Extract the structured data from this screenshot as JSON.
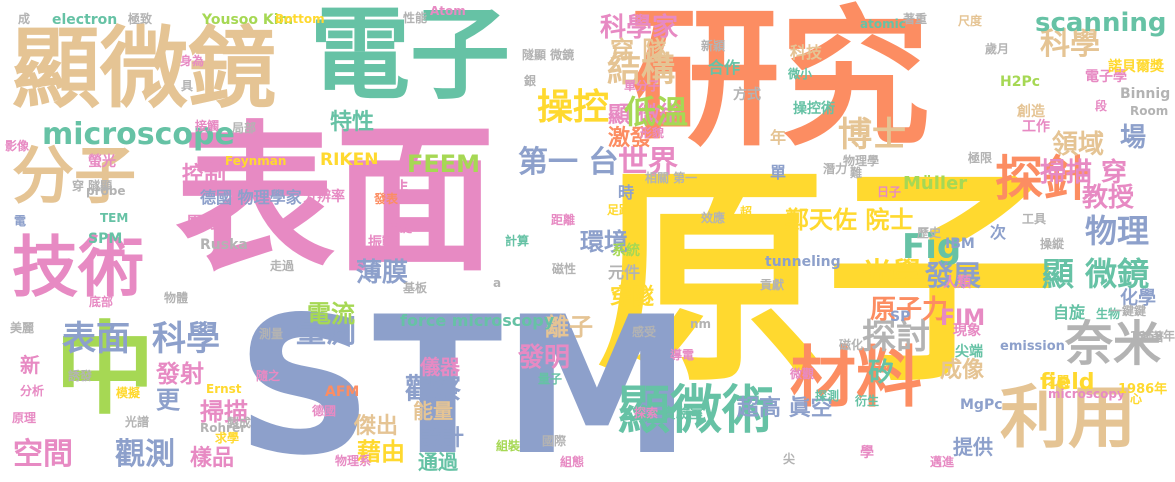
{
  "palette": {
    "green": "#66c2a5",
    "orange": "#fc8d62",
    "blue": "#8da0cb",
    "pink": "#e78ac3",
    "lime": "#a6d854",
    "yellow": "#ffd92f",
    "tan": "#e5c494",
    "gray": "#b3b3b3"
  },
  "words": [
    {
      "text": "原子",
      "color": "yellow"
    },
    {
      "text": "研究",
      "color": "orange"
    },
    {
      "text": "表面",
      "color": "pink"
    },
    {
      "text": "STM",
      "color": "blue"
    },
    {
      "text": "電子",
      "color": "green"
    },
    {
      "text": "顯微鏡",
      "color": "tan"
    },
    {
      "text": "中",
      "color": "lime"
    },
    {
      "text": "技術",
      "color": "pink"
    },
    {
      "text": "分子",
      "color": "tan"
    },
    {
      "text": "材料",
      "color": "orange"
    },
    {
      "text": "利用",
      "color": "tan"
    },
    {
      "text": "顯微術",
      "color": "green"
    },
    {
      "text": "奈米",
      "color": "gray"
    },
    {
      "text": "探針",
      "color": "orange"
    },
    {
      "text": "microscope",
      "color": "green"
    },
    {
      "text": "表面",
      "color": "blue"
    },
    {
      "text": "科學",
      "color": "blue"
    },
    {
      "text": "操控",
      "color": "yellow"
    },
    {
      "text": "結構",
      "color": "tan"
    },
    {
      "text": "科學家",
      "color": "pink"
    },
    {
      "text": "科學",
      "color": "tan"
    },
    {
      "text": "Fig",
      "color": "green"
    },
    {
      "text": "博士",
      "color": "tan"
    },
    {
      "text": "物理",
      "color": "blue"
    },
    {
      "text": "探討",
      "color": "gray"
    },
    {
      "text": "光學",
      "color": "yellow"
    },
    {
      "text": "發展",
      "color": "blue"
    },
    {
      "text": "顯 微鏡",
      "color": "green"
    },
    {
      "text": "掃描 穿",
      "color": "pink"
    },
    {
      "text": "領域",
      "color": "tan"
    },
    {
      "text": "教授",
      "color": "pink"
    },
    {
      "text": "場",
      "color": "blue"
    },
    {
      "text": "第一 台",
      "color": "blue"
    },
    {
      "text": "世界",
      "color": "pink"
    },
    {
      "text": "scanning",
      "color": "green"
    },
    {
      "text": "穿 隧",
      "color": "tan"
    },
    {
      "text": "顯 微術",
      "color": "pink"
    },
    {
      "text": "激發",
      "color": "orange"
    },
    {
      "text": "低溫",
      "color": "lime"
    },
    {
      "text": "量測",
      "color": "blue"
    },
    {
      "text": "發明",
      "color": "pink"
    },
    {
      "text": "觀察",
      "color": "blue"
    },
    {
      "text": "空間",
      "color": "pink"
    },
    {
      "text": "觀測",
      "color": "blue"
    },
    {
      "text": "掃描",
      "color": "pink"
    },
    {
      "text": "發射",
      "color": "pink"
    },
    {
      "text": "更",
      "color": "blue"
    },
    {
      "text": "離子",
      "color": "tan"
    },
    {
      "text": "環境",
      "color": "blue"
    },
    {
      "text": "薄膜",
      "color": "blue"
    },
    {
      "text": "穿隧",
      "color": "yellow"
    },
    {
      "text": "FEEM",
      "color": "lime"
    },
    {
      "text": "原子力",
      "color": "orange"
    },
    {
      "text": "FIM",
      "color": "pink"
    },
    {
      "text": "鄭天佐 院士",
      "color": "yellow"
    },
    {
      "text": "矽",
      "color": "green"
    },
    {
      "text": "成像",
      "color": "tan"
    },
    {
      "text": "field",
      "color": "yellow"
    },
    {
      "text": "超高 眞空",
      "color": "blue"
    },
    {
      "text": "控制",
      "color": "pink"
    },
    {
      "text": "特性",
      "color": "green"
    },
    {
      "text": "電流",
      "color": "lime"
    },
    {
      "text": "儀器",
      "color": "pink"
    },
    {
      "text": "設計",
      "color": "blue"
    },
    {
      "text": "傑出",
      "color": "tan"
    },
    {
      "text": "能量",
      "color": "tan"
    },
    {
      "text": "通過",
      "color": "green"
    },
    {
      "text": "藉由",
      "color": "yellow"
    },
    {
      "text": "樣品",
      "color": "pink"
    },
    {
      "text": "提供",
      "color": "blue"
    },
    {
      "text": "化學",
      "color": "blue"
    },
    {
      "text": "Müller",
      "color": "lime"
    },
    {
      "text": "force microscopy",
      "color": "green"
    },
    {
      "text": "RIKEN",
      "color": "yellow"
    },
    {
      "text": "德國 物理學家",
      "color": "blue"
    },
    {
      "text": "分辨率",
      "color": "pink"
    },
    {
      "text": "團隊",
      "color": "pink"
    },
    {
      "text": "新",
      "color": "pink"
    },
    {
      "text": "Binnig",
      "color": "gray"
    },
    {
      "text": "H2Pc",
      "color": "lime"
    },
    {
      "text": "科技",
      "color": "tan"
    },
    {
      "text": "合作",
      "color": "green"
    },
    {
      "text": "電子學",
      "color": "pink"
    },
    {
      "text": "tunneling",
      "color": "blue"
    },
    {
      "text": "MgPc",
      "color": "blue"
    },
    {
      "text": "emission",
      "color": "blue"
    },
    {
      "text": "IBM",
      "color": "blue"
    },
    {
      "text": "Feynman",
      "color": "yellow"
    },
    {
      "text": "SPM",
      "color": "green"
    },
    {
      "text": "TEM",
      "color": "green"
    },
    {
      "text": "Ruska",
      "color": "gray"
    },
    {
      "text": "electron",
      "color": "green"
    },
    {
      "text": "Yousoo Kim",
      "color": "lime"
    },
    {
      "text": "Bottom",
      "color": "yellow"
    },
    {
      "text": "Atom",
      "color": "pink"
    },
    {
      "text": "atomic",
      "color": "green"
    },
    {
      "text": "AFM",
      "color": "orange"
    },
    {
      "text": "Ernst",
      "color": "yellow"
    },
    {
      "text": "Rohrer",
      "color": "gray"
    },
    {
      "text": "microscopy",
      "color": "pink"
    },
    {
      "text": "probe",
      "color": "gray"
    },
    {
      "text": "1986年",
      "color": "yellow"
    },
    {
      "text": "1959年",
      "color": "gray"
    },
    {
      "text": "SP",
      "color": "blue"
    },
    {
      "text": "nm",
      "color": "gray"
    },
    {
      "text": "Room",
      "color": "gray"
    },
    {
      "text": "諾貝爾獎",
      "color": "yellow"
    },
    {
      "text": "次",
      "color": "blue"
    },
    {
      "text": "年",
      "color": "tan"
    },
    {
      "text": "單",
      "color": "blue"
    },
    {
      "text": "時",
      "color": "blue"
    },
    {
      "text": "非",
      "color": "pink"
    },
    {
      "text": "自旋",
      "color": "green"
    },
    {
      "text": "元件",
      "color": "gray"
    },
    {
      "text": "系統",
      "color": "lime"
    },
    {
      "text": "現象",
      "color": "pink"
    },
    {
      "text": "尖端",
      "color": "green"
    },
    {
      "text": "創造",
      "color": "tan"
    },
    {
      "text": "工作",
      "color": "pink"
    },
    {
      "text": "方式",
      "color": "gray"
    },
    {
      "text": "操控術",
      "color": "green"
    },
    {
      "text": "生物",
      "color": "green"
    },
    {
      "text": "量子",
      "color": "green"
    },
    {
      "text": "探測",
      "color": "green"
    },
    {
      "text": "探索",
      "color": "pink"
    },
    {
      "text": "實驗室",
      "color": "green"
    },
    {
      "text": "組裝",
      "color": "lime"
    },
    {
      "text": "人類",
      "color": "pink"
    },
    {
      "text": "貢獻",
      "color": "gray"
    },
    {
      "text": "振動",
      "color": "pink"
    },
    {
      "text": "單鍵",
      "color": "pink"
    },
    {
      "text": "發表",
      "color": "orange"
    },
    {
      "text": "計算",
      "color": "green"
    },
    {
      "text": "距離",
      "color": "pink"
    },
    {
      "text": "磁性",
      "color": "gray"
    },
    {
      "text": "效應",
      "color": "gray"
    },
    {
      "text": "超",
      "color": "yellow"
    },
    {
      "text": "足跡",
      "color": "yellow"
    },
    {
      "text": "相關 第一",
      "color": "gray"
    },
    {
      "text": "形貌",
      "color": "pink"
    },
    {
      "text": "基板",
      "color": "gray"
    },
    {
      "text": "走過",
      "color": "gray"
    },
    {
      "text": "物體",
      "color": "gray"
    },
    {
      "text": "測量",
      "color": "gray"
    },
    {
      "text": "局部",
      "color": "gray"
    },
    {
      "text": "接觸",
      "color": "pink"
    },
    {
      "text": "影像",
      "color": "pink"
    },
    {
      "text": "螢光",
      "color": "pink"
    },
    {
      "text": "穿 隧顯",
      "color": "gray"
    },
    {
      "text": "底部",
      "color": "pink"
    },
    {
      "text": "美麗",
      "color": "gray"
    },
    {
      "text": "誘發",
      "color": "gray"
    },
    {
      "text": "分析",
      "color": "pink"
    },
    {
      "text": "原理",
      "color": "pink"
    },
    {
      "text": "光譜",
      "color": "gray"
    },
    {
      "text": "製成",
      "color": "gray"
    },
    {
      "text": "求學",
      "color": "yellow"
    },
    {
      "text": "物理系",
      "color": "pink"
    },
    {
      "text": "德國",
      "color": "pink"
    },
    {
      "text": "國際",
      "color": "gray"
    },
    {
      "text": "組態",
      "color": "pink"
    },
    {
      "text": "尖",
      "color": "gray"
    },
    {
      "text": "學",
      "color": "pink"
    },
    {
      "text": "衍生",
      "color": "green"
    },
    {
      "text": "之間",
      "color": "yellow"
    },
    {
      "text": "心",
      "color": "yellow"
    },
    {
      "text": "邁進",
      "color": "pink"
    },
    {
      "text": "一鍵鍵",
      "color": "gray"
    },
    {
      "text": "執著",
      "color": "gray"
    },
    {
      "text": "操縱",
      "color": "gray"
    },
    {
      "text": "工具",
      "color": "gray"
    },
    {
      "text": "極限",
      "color": "gray"
    },
    {
      "text": "日子",
      "color": "pink"
    },
    {
      "text": "物理學",
      "color": "gray"
    },
    {
      "text": "潛力",
      "color": "gray"
    },
    {
      "text": "難",
      "color": "gray"
    },
    {
      "text": "磁化",
      "color": "gray"
    },
    {
      "text": "微觀",
      "color": "pink"
    },
    {
      "text": "導電",
      "color": "pink"
    },
    {
      "text": "尺度",
      "color": "tan"
    },
    {
      "text": "歲月",
      "color": "gray"
    },
    {
      "text": "著重",
      "color": "gray"
    },
    {
      "text": "段",
      "color": "pink"
    },
    {
      "text": "微小",
      "color": "green"
    },
    {
      "text": "隧顯 微鏡",
      "color": "gray"
    },
    {
      "text": "銀",
      "color": "gray"
    },
    {
      "text": "單分子",
      "color": "pink"
    },
    {
      "text": "新穎",
      "color": "gray"
    },
    {
      "text": "性能",
      "color": "gray"
    },
    {
      "text": "身為",
      "color": "pink"
    },
    {
      "text": "具",
      "color": "gray"
    },
    {
      "text": "極致",
      "color": "gray"
    },
    {
      "text": "成",
      "color": "gray"
    },
    {
      "text": "門",
      "color": "pink"
    },
    {
      "text": "隨之",
      "color": "pink"
    },
    {
      "text": "模擬",
      "color": "yellow"
    },
    {
      "text": "感受",
      "color": "gray"
    },
    {
      "text": "電",
      "color": "blue"
    },
    {
      "text": "a",
      "color": "gray"
    },
    {
      "text": "歷史",
      "color": "gray"
    }
  ]
}
